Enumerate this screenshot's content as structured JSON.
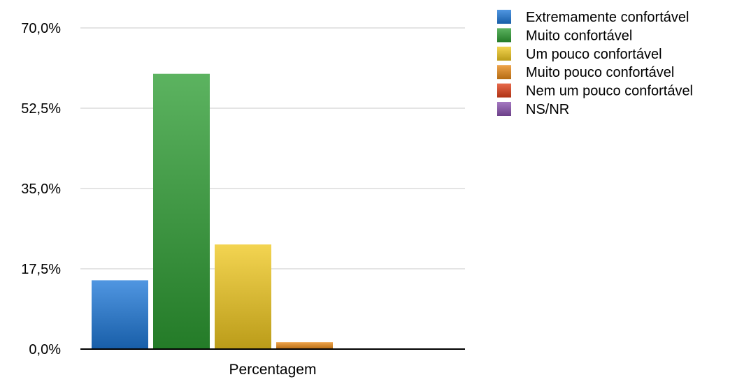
{
  "chart_data": {
    "type": "bar",
    "title": "",
    "xlabel": "",
    "ylabel": "",
    "categories": [
      "Percentagem"
    ],
    "series": [
      {
        "name": "Extremamente confortável",
        "values": [
          15.0
        ],
        "color": "#1f78d8"
      },
      {
        "name": "Muito confortável",
        "values": [
          60.0
        ],
        "color": "#2e9e33"
      },
      {
        "name": "Um pouco confortável",
        "values": [
          22.8
        ],
        "color": "#f0c820"
      },
      {
        "name": "Muito pouco confortável",
        "values": [
          1.5
        ],
        "color": "#e98a18"
      },
      {
        "name": "Nem um pouco confortável",
        "values": [
          0.0
        ],
        "color": "#e0401a"
      },
      {
        "name": "NS/NR",
        "values": [
          0.0
        ],
        "color": "#8a52b0"
      }
    ],
    "y_ticks": [
      "0,0%",
      "17,5%",
      "35,0%",
      "52,5%",
      "70,0%"
    ],
    "y_tick_values": [
      0,
      17.5,
      35,
      52.5,
      70
    ],
    "ylim": [
      0,
      70
    ],
    "grid": true,
    "legend_position": "right"
  }
}
